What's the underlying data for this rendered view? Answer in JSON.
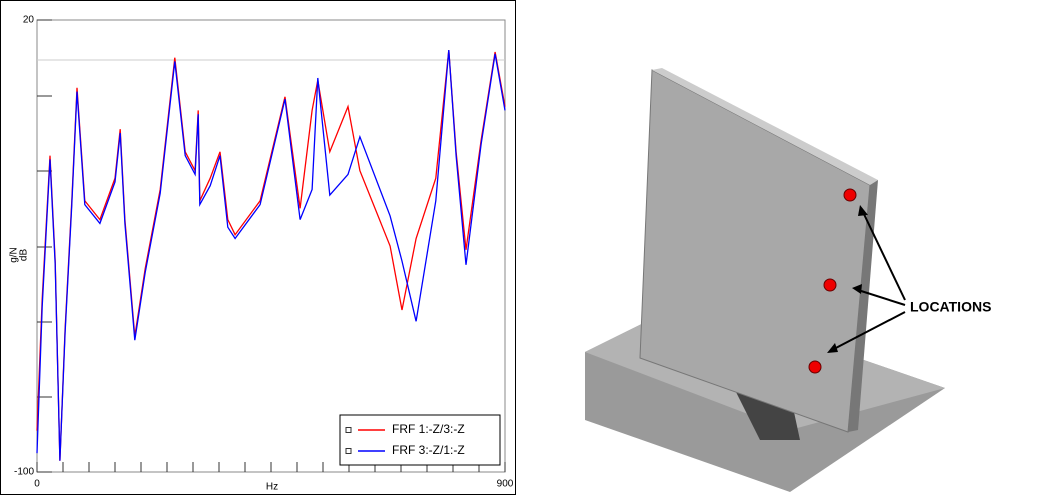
{
  "chart_data": {
    "type": "line",
    "x_label": "Hz",
    "y_label": "dB",
    "y_unit": "g/N",
    "x": [
      0,
      10,
      25,
      35,
      44,
      54,
      67,
      77,
      92,
      121,
      150,
      160,
      169,
      188,
      208,
      237,
      265,
      285,
      304,
      310,
      313,
      333,
      352,
      367,
      381,
      429,
      477,
      506,
      529,
      540,
      563,
      598,
      621,
      679,
      702,
      729,
      767,
      792,
      806,
      825,
      854,
      881,
      900
    ],
    "series": [
      {
        "name": "FRF 1:-Z/3:-Z",
        "color": "#ff0000",
        "values": [
          -89,
          -54,
          -16,
          -44,
          -97,
          -62,
          -28,
          2,
          -28,
          -33,
          -22,
          -9,
          -33,
          -64,
          -46,
          -25,
          10,
          -15,
          -20,
          -4,
          -28,
          -22,
          -15,
          -33,
          -37,
          -28,
          -0.4,
          -30,
          -4,
          4,
          -15,
          -3,
          -20,
          -40,
          -57,
          -38,
          -22,
          12,
          -15,
          -41,
          -12,
          11.5,
          -3
        ]
      },
      {
        "name": "FRF 3:-Z/1:-Z",
        "color": "#0000ff",
        "values": [
          -95,
          -56,
          -17,
          -45,
          -97,
          -63,
          -29,
          1,
          -29,
          -34,
          -23,
          -10,
          -34,
          -65,
          -47,
          -26,
          9,
          -16,
          -21,
          -5,
          -29,
          -24,
          -16,
          -35,
          -38,
          -29,
          -1,
          -33,
          -25,
          4.6,
          -26.5,
          -21,
          -11,
          -32,
          -44,
          -60,
          -28,
          12,
          -16,
          -45,
          -13,
          11,
          -4
        ]
      }
    ],
    "xlim": [
      0,
      900
    ],
    "xticks": [
      0,
      900
    ],
    "ylim": [
      -100,
      20
    ],
    "yticks": [
      -100,
      20
    ]
  },
  "photo": {
    "label": "LOCATIONS"
  }
}
